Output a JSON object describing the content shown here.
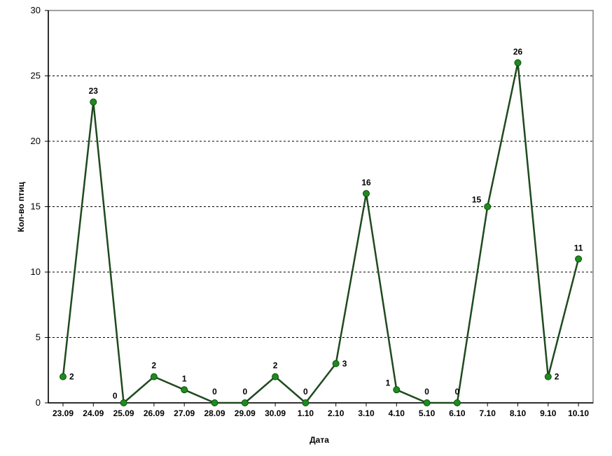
{
  "chart_data": {
    "type": "line",
    "title": "",
    "xlabel": "Дата",
    "ylabel": "Кол-во птиц",
    "categories": [
      "23.09",
      "24.09",
      "25.09",
      "26.09",
      "27.09",
      "28.09",
      "29.09",
      "30.09",
      "1.10",
      "2.10",
      "3.10",
      "4.10",
      "5.10",
      "6.10",
      "7.10",
      "8.10",
      "9.10",
      "10.10"
    ],
    "values": [
      2,
      23,
      0,
      2,
      1,
      0,
      0,
      2,
      0,
      3,
      16,
      1,
      0,
      0,
      15,
      26,
      2,
      11
    ],
    "ylim": [
      0,
      30
    ],
    "yticks": [
      0,
      5,
      10,
      15,
      20,
      25,
      30
    ],
    "grid": "horizontal dashed",
    "data_labels": true,
    "colors": {
      "line": "#1f4a1f",
      "marker": "#1e8c1e"
    }
  }
}
